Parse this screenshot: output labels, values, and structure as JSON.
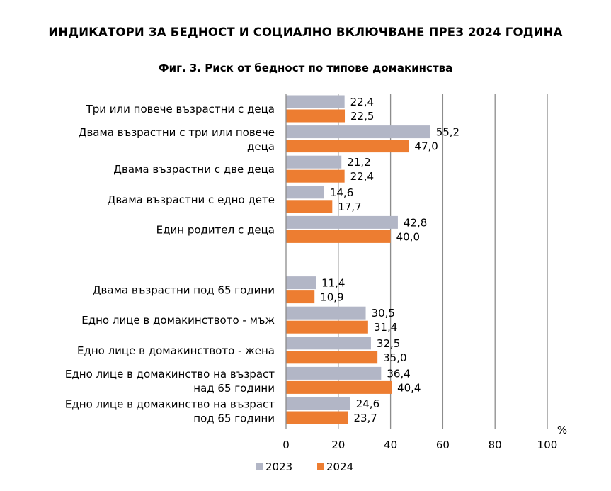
{
  "header": "ИНДИКАТОРИ ЗА БЕДНОСТ И СОЦИАЛНО ВКЛЮЧВАНЕ ПРЕЗ 2024 ГОДИНА",
  "chart_data": {
    "type": "bar",
    "orientation": "horizontal",
    "title": "Фиг. 3. Риск от бедност по типове домакинства",
    "unit_label": "%",
    "xlim": [
      0,
      100
    ],
    "ticks": [
      "0",
      "20",
      "40",
      "60",
      "80",
      "100"
    ],
    "grid": true,
    "legend_position": "bottom",
    "decimal_separator": ",",
    "categories": [
      [
        "Три или повече възрастни с деца"
      ],
      [
        "Двама възрастни с три или повече",
        "деца"
      ],
      [
        "Двама възрастни с две деца"
      ],
      [
        "Двама възрастни с едно дете"
      ],
      [
        "Един родител с деца"
      ],
      null,
      [
        "Двама възрастни под 65 години"
      ],
      [
        "Едно лице в домакинството - мъж"
      ],
      [
        "Едно лице в домакинството - жена"
      ],
      [
        "Едно лице в домакинство на възраст",
        "над 65 години"
      ],
      [
        "Едно лице в домакинство на възраст",
        "под 65 години"
      ]
    ],
    "series": [
      {
        "name": "2023",
        "color": "#b2b6c6",
        "values": [
          22.4,
          55.2,
          21.2,
          14.6,
          42.8,
          null,
          11.4,
          30.5,
          32.5,
          36.4,
          24.6
        ]
      },
      {
        "name": "2024",
        "color": "#ed7d31",
        "values": [
          22.5,
          47.0,
          22.4,
          17.7,
          40.0,
          null,
          10.9,
          31.4,
          35.0,
          40.4,
          23.7
        ]
      }
    ]
  }
}
